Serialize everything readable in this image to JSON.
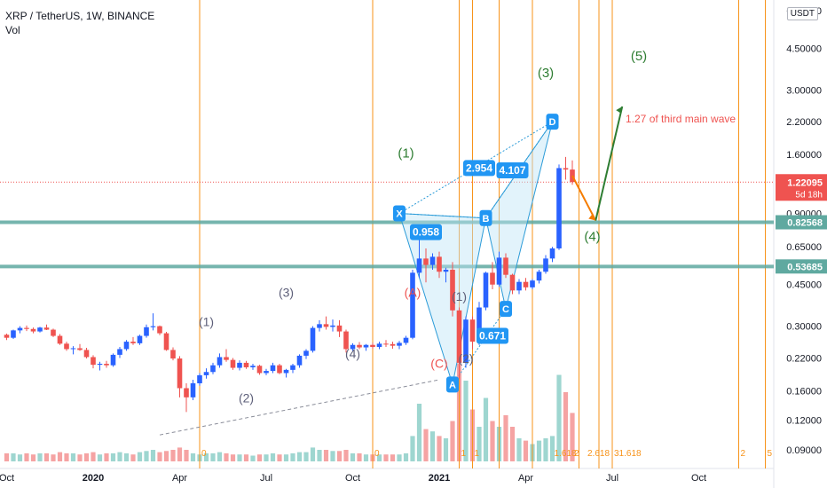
{
  "header": {
    "symbol_line": "XRP / TetherUS, 1W, BINANCE",
    "indicator": "Vol",
    "currency_unit": "USDT"
  },
  "colors": {
    "up": "#2962ff",
    "down": "#ef5350",
    "vol_up": "#9ed6d0",
    "vol_down": "#f5a3a3",
    "fib_line": "#f7931a",
    "support": "#5fa9a0",
    "green_label": "#2e7d32",
    "red_label": "#ef5350",
    "pattern_fill": "#bfe4f7",
    "pattern_line": "#2b9bd8",
    "grey_label": "#5d5f79"
  },
  "chart_data": {
    "type": "candlestick",
    "y_scale": "log",
    "ylim": [
      0.075,
      7.2
    ],
    "price_ticks": [
      "6.50000",
      "4.50000",
      "3.00000",
      "2.20000",
      "1.60000",
      "0.90000",
      "0.65000",
      "0.45000",
      "0.30000",
      "0.22000",
      "0.16000",
      "0.12000",
      "0.09000"
    ],
    "price_tick_values": [
      6.5,
      4.5,
      3.0,
      2.2,
      1.6,
      0.9,
      0.65,
      0.45,
      0.3,
      0.22,
      0.16,
      0.12,
      0.09
    ],
    "x_ticks": [
      {
        "label": "Oct",
        "week": 0
      },
      {
        "label": "2020",
        "week": 13
      },
      {
        "label": "Apr",
        "week": 26
      },
      {
        "label": "Jul",
        "week": 39
      },
      {
        "label": "Oct",
        "week": 52
      },
      {
        "label": "2021",
        "week": 65
      },
      {
        "label": "Apr",
        "week": 78
      },
      {
        "label": "Jul",
        "week": 91
      },
      {
        "label": "Oct",
        "week": 104
      }
    ],
    "last_price": {
      "value": "1.22095",
      "countdown": "5d 18h",
      "price": 1.22095
    },
    "horizontal_levels": [
      {
        "label": "0.82568",
        "price": 0.82568
      },
      {
        "label": "0.53685",
        "price": 0.53685
      }
    ],
    "candles": [
      [
        0.276,
        0.279,
        0.262,
        0.268
      ],
      [
        0.268,
        0.29,
        0.265,
        0.288
      ],
      [
        0.288,
        0.3,
        0.28,
        0.295
      ],
      [
        0.295,
        0.302,
        0.286,
        0.292
      ],
      [
        0.292,
        0.296,
        0.28,
        0.285
      ],
      [
        0.285,
        0.298,
        0.282,
        0.296
      ],
      [
        0.296,
        0.305,
        0.289,
        0.29
      ],
      [
        0.29,
        0.293,
        0.27,
        0.273
      ],
      [
        0.273,
        0.278,
        0.25,
        0.253
      ],
      [
        0.253,
        0.258,
        0.236,
        0.24
      ],
      [
        0.24,
        0.247,
        0.228,
        0.242
      ],
      [
        0.242,
        0.252,
        0.236,
        0.238
      ],
      [
        0.238,
        0.243,
        0.219,
        0.222
      ],
      [
        0.222,
        0.226,
        0.199,
        0.206
      ],
      [
        0.206,
        0.212,
        0.195,
        0.208
      ],
      [
        0.208,
        0.214,
        0.2,
        0.205
      ],
      [
        0.205,
        0.23,
        0.202,
        0.227
      ],
      [
        0.227,
        0.245,
        0.22,
        0.24
      ],
      [
        0.24,
        0.262,
        0.236,
        0.258
      ],
      [
        0.258,
        0.27,
        0.25,
        0.254
      ],
      [
        0.254,
        0.276,
        0.25,
        0.273
      ],
      [
        0.273,
        0.305,
        0.268,
        0.297
      ],
      [
        0.297,
        0.34,
        0.288,
        0.3
      ],
      [
        0.3,
        0.302,
        0.275,
        0.28
      ],
      [
        0.28,
        0.284,
        0.236,
        0.238
      ],
      [
        0.238,
        0.244,
        0.215,
        0.219
      ],
      [
        0.219,
        0.224,
        0.15,
        0.164
      ],
      [
        0.164,
        0.172,
        0.13,
        0.15
      ],
      [
        0.15,
        0.178,
        0.146,
        0.172
      ],
      [
        0.172,
        0.19,
        0.168,
        0.186
      ],
      [
        0.186,
        0.199,
        0.18,
        0.192
      ],
      [
        0.192,
        0.21,
        0.188,
        0.205
      ],
      [
        0.205,
        0.23,
        0.2,
        0.222
      ],
      [
        0.222,
        0.24,
        0.212,
        0.216
      ],
      [
        0.216,
        0.22,
        0.196,
        0.2
      ],
      [
        0.2,
        0.215,
        0.195,
        0.21
      ],
      [
        0.21,
        0.214,
        0.198,
        0.201
      ],
      [
        0.201,
        0.208,
        0.196,
        0.204
      ],
      [
        0.204,
        0.206,
        0.187,
        0.19
      ],
      [
        0.19,
        0.198,
        0.186,
        0.194
      ],
      [
        0.194,
        0.21,
        0.19,
        0.205
      ],
      [
        0.205,
        0.208,
        0.188,
        0.19
      ],
      [
        0.19,
        0.198,
        0.182,
        0.196
      ],
      [
        0.196,
        0.208,
        0.19,
        0.205
      ],
      [
        0.205,
        0.228,
        0.2,
        0.225
      ],
      [
        0.225,
        0.24,
        0.218,
        0.236
      ],
      [
        0.236,
        0.3,
        0.232,
        0.295
      ],
      [
        0.295,
        0.318,
        0.285,
        0.306
      ],
      [
        0.306,
        0.33,
        0.29,
        0.298
      ],
      [
        0.298,
        0.32,
        0.285,
        0.302
      ],
      [
        0.302,
        0.318,
        0.27,
        0.285
      ],
      [
        0.285,
        0.29,
        0.232,
        0.24
      ],
      [
        0.24,
        0.254,
        0.236,
        0.25
      ],
      [
        0.25,
        0.257,
        0.24,
        0.244
      ],
      [
        0.244,
        0.252,
        0.236,
        0.25
      ],
      [
        0.25,
        0.255,
        0.241,
        0.245
      ],
      [
        0.245,
        0.258,
        0.24,
        0.253
      ],
      [
        0.253,
        0.262,
        0.245,
        0.252
      ],
      [
        0.252,
        0.258,
        0.241,
        0.248
      ],
      [
        0.248,
        0.26,
        0.24,
        0.255
      ],
      [
        0.255,
        0.273,
        0.25,
        0.268
      ],
      [
        0.268,
        0.52,
        0.264,
        0.505
      ],
      [
        0.505,
        0.78,
        0.48,
        0.58
      ],
      [
        0.58,
        0.64,
        0.46,
        0.545
      ],
      [
        0.545,
        0.61,
        0.52,
        0.59
      ],
      [
        0.59,
        0.62,
        0.48,
        0.51
      ],
      [
        0.51,
        0.53,
        0.46,
        0.52
      ],
      [
        0.52,
        0.56,
        0.33,
        0.35
      ],
      [
        0.35,
        0.36,
        0.18,
        0.21
      ],
      [
        0.21,
        0.33,
        0.2,
        0.32
      ],
      [
        0.32,
        0.33,
        0.24,
        0.258
      ],
      [
        0.258,
        0.38,
        0.25,
        0.36
      ],
      [
        0.36,
        0.51,
        0.35,
        0.505
      ],
      [
        0.505,
        0.56,
        0.43,
        0.45
      ],
      [
        0.45,
        0.62,
        0.44,
        0.585
      ],
      [
        0.585,
        0.61,
        0.48,
        0.495
      ],
      [
        0.495,
        0.5,
        0.41,
        0.425
      ],
      [
        0.425,
        0.475,
        0.41,
        0.462
      ],
      [
        0.462,
        0.48,
        0.425,
        0.438
      ],
      [
        0.438,
        0.475,
        0.43,
        0.468
      ],
      [
        0.468,
        0.52,
        0.455,
        0.51
      ],
      [
        0.51,
        0.6,
        0.5,
        0.58
      ],
      [
        0.58,
        0.65,
        0.56,
        0.64
      ],
      [
        0.64,
        1.45,
        0.63,
        1.4
      ],
      [
        1.4,
        1.56,
        1.25,
        1.38
      ],
      [
        1.38,
        1.51,
        1.19,
        1.222
      ]
    ],
    "volumes": [
      0.07,
      0.07,
      0.06,
      0.07,
      0.06,
      0.07,
      0.07,
      0.06,
      0.08,
      0.07,
      0.07,
      0.06,
      0.07,
      0.08,
      0.06,
      0.07,
      0.07,
      0.08,
      0.07,
      0.06,
      0.08,
      0.09,
      0.1,
      0.08,
      0.09,
      0.1,
      0.12,
      0.1,
      0.07,
      0.06,
      0.07,
      0.07,
      0.08,
      0.07,
      0.06,
      0.06,
      0.06,
      0.05,
      0.06,
      0.06,
      0.07,
      0.06,
      0.06,
      0.07,
      0.08,
      0.08,
      0.12,
      0.1,
      0.1,
      0.09,
      0.09,
      0.1,
      0.07,
      0.07,
      0.06,
      0.06,
      0.06,
      0.06,
      0.06,
      0.06,
      0.07,
      0.22,
      0.5,
      0.28,
      0.26,
      0.22,
      0.2,
      0.35,
      0.85,
      0.7,
      0.45,
      0.3,
      0.55,
      0.35,
      0.3,
      0.4,
      0.3,
      0.2,
      0.18,
      0.15,
      0.18,
      0.2,
      0.22,
      0.75,
      0.6,
      0.42
    ],
    "fib_vertical_lines": [
      {
        "week": 29
      },
      {
        "week": 55
      },
      {
        "week": 68
      },
      {
        "week": 70
      },
      {
        "week": 74
      },
      {
        "week": 79
      },
      {
        "week": 86
      },
      {
        "week": 89
      },
      {
        "week": 91
      },
      {
        "week": 110
      },
      {
        "week": 114
      }
    ],
    "fib_labels": [
      {
        "text": "0",
        "week": 29
      },
      {
        "text": "0",
        "week": 55
      },
      {
        "text": "1",
        "week": 68
      },
      {
        "text": "1",
        "week": 70
      },
      {
        "text": "1.618",
        "week": 82
      },
      {
        "text": "2",
        "week": 85
      },
      {
        "text": "2.618",
        "week": 87
      },
      {
        "text": "31.618",
        "week": 91
      },
      {
        "text": "2",
        "week": 110
      },
      {
        "text": "5",
        "week": 114
      }
    ],
    "harmonic_points": [
      {
        "label": "X",
        "week": 59,
        "price": 0.9
      },
      {
        "label": "A",
        "week": 67,
        "price": 0.17
      },
      {
        "label": "B",
        "week": 72,
        "price": 0.86
      },
      {
        "label": "C",
        "week": 75,
        "price": 0.355
      },
      {
        "label": "D",
        "week": 82,
        "price": 2.2
      }
    ],
    "ratio_labels": [
      {
        "text": "0.958",
        "week": 63,
        "price": 0.75
      },
      {
        "text": "0.671",
        "week": 73,
        "price": 0.273
      },
      {
        "text": "2.954",
        "week": 71,
        "price": 1.4
      },
      {
        "text": "4.107",
        "week": 76,
        "price": 1.37
      }
    ],
    "wave_labels": [
      {
        "text": "(1)",
        "week": 30,
        "price": 0.3,
        "style": "grey"
      },
      {
        "text": "(2)",
        "week": 36,
        "price": 0.143,
        "style": "grey"
      },
      {
        "text": "(3)",
        "week": 42,
        "price": 0.4,
        "style": "grey"
      },
      {
        "text": "(4)",
        "week": 52,
        "price": 0.22,
        "style": "grey"
      },
      {
        "text": "(1)",
        "week": 60,
        "price": 1.55,
        "style": "green"
      },
      {
        "text": "(A)",
        "week": 61,
        "price": 0.4,
        "style": "red"
      },
      {
        "text": "(1)",
        "week": 68,
        "price": 0.385,
        "style": "grey"
      },
      {
        "text": "(2)",
        "week": 69,
        "price": 0.21,
        "style": "grey"
      },
      {
        "text": "(C)",
        "week": 65,
        "price": 0.2,
        "style": "red"
      },
      {
        "text": "(3)",
        "week": 81,
        "price": 3.4,
        "style": "green"
      },
      {
        "text": "(4)",
        "week": 88,
        "price": 0.69,
        "style": "green"
      },
      {
        "text": "(5)",
        "week": 95,
        "price": 4.0,
        "style": "green"
      }
    ],
    "annotation": {
      "text": "1.27 of third main wave",
      "week": 93,
      "price": 2.18
    }
  }
}
